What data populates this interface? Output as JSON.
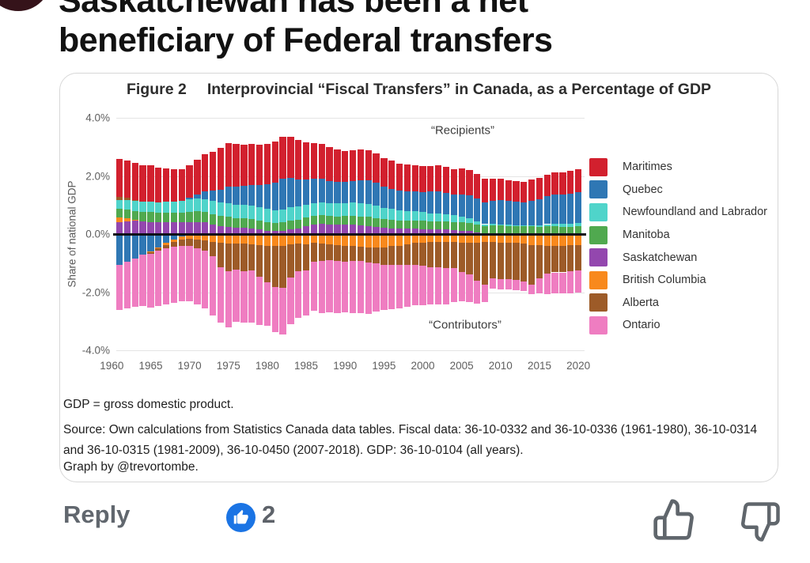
{
  "post": {
    "title_line1": "Saskatchewan has been a net",
    "title_line2": "beneficiary of  Federal transfers"
  },
  "figure": {
    "title_prefix": "Figure 2",
    "title_text": "Interprovincial “Fiscal Transfers” in Canada, as a Percentage of GDP",
    "footnote_gdp": "GDP = gross domestic product.",
    "footnote_source": "Source: Own calculations from Statistics Canada data tables. Fiscal data: 36-10-0332 and 36-10-0336 (1961-1980), 36-10-0314 and 36-10-0315 (1981-2009), 36-10-0450 (2007-2018). GDP: 36-10-0104 (all years).",
    "footnote_credit": "Graph by @trevortombe."
  },
  "chart_data": {
    "type": "bar",
    "stacked": true,
    "title": "Figure 2  Interprovincial “Fiscal Transfers” in Canada, as a Percentage of GDP",
    "ylabel": "Share of national GDP",
    "ylim": [
      -4,
      4
    ],
    "grid": true,
    "legend_position": "right",
    "y_ticks": [
      "4.0%",
      "2.0%",
      "0.0%",
      "-2.0%",
      "-4.0%"
    ],
    "y_tick_values": [
      4,
      2,
      0,
      -2,
      -4
    ],
    "x_ticks": [
      1960,
      1965,
      1970,
      1975,
      1980,
      1985,
      1990,
      1995,
      2000,
      2005,
      2010,
      2015,
      2020
    ],
    "start_year": 1961,
    "end_year": 2020,
    "annotation_recipients": "“Recipients”",
    "annotation_contributors": "“Contributors”",
    "positive_stack_order": [
      "Saskatchewan",
      "British Columbia",
      "Manitoba",
      "Newfoundland and Labrador",
      "Alberta",
      "Quebec",
      "Maritimes"
    ],
    "negative_stack_order": [
      "Quebec",
      "British Columbia",
      "Alberta",
      "Ontario"
    ],
    "series": [
      {
        "name": "Maritimes",
        "color": "#d2202e",
        "values": [
          1.3,
          1.3,
          1.28,
          1.26,
          1.26,
          1.2,
          1.15,
          1.1,
          1.1,
          1.12,
          1.2,
          1.28,
          1.34,
          1.44,
          1.5,
          1.46,
          1.42,
          1.4,
          1.38,
          1.4,
          1.42,
          1.45,
          1.42,
          1.36,
          1.28,
          1.24,
          1.2,
          1.16,
          1.12,
          1.08,
          1.06,
          1.06,
          1.04,
          1.02,
          0.98,
          0.96,
          0.94,
          0.92,
          0.9,
          0.88,
          0.88,
          0.9,
          0.9,
          0.88,
          0.9,
          0.88,
          0.84,
          0.8,
          0.76,
          0.74,
          0.72,
          0.7,
          0.7,
          0.72,
          0.72,
          0.74,
          0.75,
          0.76,
          0.78,
          0.8
        ]
      },
      {
        "name": "Quebec",
        "color": "#2f77b4",
        "values": [
          -1.05,
          -0.95,
          -0.85,
          -0.72,
          -0.6,
          -0.45,
          -0.3,
          -0.18,
          -0.08,
          0.05,
          0.15,
          0.25,
          0.35,
          0.45,
          0.55,
          0.62,
          0.66,
          0.7,
          0.78,
          0.85,
          0.95,
          1.05,
          1.0,
          0.92,
          0.88,
          0.84,
          0.8,
          0.76,
          0.74,
          0.72,
          0.74,
          0.78,
          0.8,
          0.78,
          0.72,
          0.7,
          0.68,
          0.68,
          0.7,
          0.7,
          0.74,
          0.76,
          0.74,
          0.72,
          0.76,
          0.78,
          0.8,
          0.76,
          0.8,
          0.84,
          0.82,
          0.8,
          0.8,
          0.84,
          0.9,
          0.96,
          1.0,
          1.02,
          1.04,
          1.05
        ]
      },
      {
        "name": "Newfoundland and Labrador",
        "color": "#4fd4ca",
        "values": [
          0.32,
          0.33,
          0.34,
          0.35,
          0.36,
          0.36,
          0.37,
          0.38,
          0.4,
          0.42,
          0.44,
          0.45,
          0.45,
          0.46,
          0.48,
          0.46,
          0.45,
          0.46,
          0.45,
          0.44,
          0.44,
          0.45,
          0.46,
          0.45,
          0.44,
          0.44,
          0.44,
          0.44,
          0.44,
          0.45,
          0.46,
          0.46,
          0.45,
          0.43,
          0.4,
          0.38,
          0.36,
          0.34,
          0.32,
          0.3,
          0.28,
          0.26,
          0.24,
          0.22,
          0.2,
          0.16,
          0.1,
          0.06,
          0.05,
          0.04,
          0.04,
          0.04,
          0.04,
          0.05,
          0.06,
          0.08,
          0.1,
          0.1,
          0.11,
          0.12
        ]
      },
      {
        "name": "Manitoba",
        "color": "#50a94f",
        "values": [
          0.3,
          0.3,
          0.3,
          0.32,
          0.33,
          0.33,
          0.34,
          0.34,
          0.34,
          0.35,
          0.36,
          0.36,
          0.35,
          0.34,
          0.34,
          0.33,
          0.33,
          0.33,
          0.32,
          0.3,
          0.28,
          0.28,
          0.3,
          0.3,
          0.3,
          0.3,
          0.3,
          0.29,
          0.29,
          0.3,
          0.3,
          0.31,
          0.31,
          0.3,
          0.29,
          0.28,
          0.27,
          0.27,
          0.28,
          0.28,
          0.28,
          0.28,
          0.29,
          0.28,
          0.28,
          0.28,
          0.27,
          0.26,
          0.28,
          0.28,
          0.27,
          0.26,
          0.25,
          0.25,
          0.24,
          0.24,
          0.24,
          0.23,
          0.23,
          0.24
        ]
      },
      {
        "name": "Saskatchewan",
        "color": "#9347ae",
        "values": [
          0.42,
          0.44,
          0.45,
          0.44,
          0.42,
          0.4,
          0.4,
          0.4,
          0.4,
          0.42,
          0.42,
          0.4,
          0.34,
          0.28,
          0.25,
          0.22,
          0.22,
          0.2,
          0.15,
          0.12,
          0.1,
          0.12,
          0.16,
          0.2,
          0.26,
          0.32,
          0.36,
          0.34,
          0.32,
          0.32,
          0.32,
          0.3,
          0.28,
          0.25,
          0.22,
          0.2,
          0.18,
          0.18,
          0.18,
          0.17,
          0.16,
          0.16,
          0.15,
          0.14,
          0.12,
          0.1,
          0.06,
          0.02,
          0.02,
          0.01,
          0.01,
          0.01,
          0.01,
          0.01,
          0.01,
          0.02,
          0.02,
          0.02,
          0.02,
          0.02
        ]
      },
      {
        "name": "British Columbia",
        "color": "#f8891d",
        "values": [
          0.14,
          0.1,
          0.05,
          0.0,
          -0.03,
          -0.05,
          -0.08,
          -0.1,
          -0.12,
          -0.15,
          -0.18,
          -0.22,
          -0.26,
          -0.3,
          -0.32,
          -0.33,
          -0.34,
          -0.35,
          -0.38,
          -0.4,
          -0.42,
          -0.4,
          -0.36,
          -0.33,
          -0.35,
          -0.3,
          -0.33,
          -0.35,
          -0.38,
          -0.4,
          -0.42,
          -0.43,
          -0.45,
          -0.47,
          -0.45,
          -0.42,
          -0.4,
          -0.35,
          -0.3,
          -0.3,
          -0.28,
          -0.28,
          -0.28,
          -0.28,
          -0.3,
          -0.3,
          -0.3,
          -0.28,
          -0.28,
          -0.3,
          -0.3,
          -0.3,
          -0.32,
          -0.38,
          -0.38,
          -0.42,
          -0.42,
          -0.4,
          -0.38,
          -0.38
        ]
      },
      {
        "name": "Alberta",
        "color": "#9d5b28",
        "values": [
          0.1,
          0.07,
          0.03,
          0.0,
          -0.05,
          -0.08,
          -0.12,
          -0.16,
          -0.2,
          -0.25,
          -0.3,
          -0.35,
          -0.5,
          -0.85,
          -0.95,
          -0.9,
          -0.95,
          -0.9,
          -1.1,
          -1.25,
          -1.4,
          -1.45,
          -1.15,
          -0.95,
          -0.9,
          -0.65,
          -0.6,
          -0.55,
          -0.55,
          -0.55,
          -0.5,
          -0.5,
          -0.52,
          -0.55,
          -0.6,
          -0.65,
          -0.65,
          -0.7,
          -0.75,
          -0.8,
          -0.85,
          -0.85,
          -0.88,
          -0.9,
          -1.0,
          -1.1,
          -1.3,
          -1.45,
          -1.25,
          -1.25,
          -1.25,
          -1.28,
          -1.3,
          -1.35,
          -1.15,
          -0.95,
          -0.9,
          -0.92,
          -0.9,
          -0.88
        ]
      },
      {
        "name": "Ontario",
        "color": "#ef7dc1",
        "values": [
          -1.55,
          -1.6,
          -1.65,
          -1.75,
          -1.85,
          -1.9,
          -1.92,
          -1.92,
          -1.9,
          -1.9,
          -1.95,
          -2.0,
          -2.05,
          -1.9,
          -1.95,
          -1.8,
          -1.75,
          -1.8,
          -1.65,
          -1.5,
          -1.55,
          -1.6,
          -1.6,
          -1.6,
          -1.55,
          -1.7,
          -1.8,
          -1.8,
          -1.8,
          -1.75,
          -1.8,
          -1.8,
          -1.78,
          -1.65,
          -1.55,
          -1.52,
          -1.5,
          -1.45,
          -1.4,
          -1.35,
          -1.3,
          -1.3,
          -1.25,
          -1.15,
          -1.0,
          -0.95,
          -0.8,
          -0.6,
          -0.35,
          -0.35,
          -0.35,
          -0.35,
          -0.35,
          -0.35,
          -0.5,
          -0.7,
          -0.72,
          -0.72,
          -0.75,
          -0.75
        ]
      }
    ]
  },
  "actions": {
    "reply_label": "Reply",
    "like_count": "2"
  },
  "colors": {
    "like_badge_blue": "#1b74e4",
    "zero_line": "#0e0e18",
    "action_gray": "#61676e"
  }
}
